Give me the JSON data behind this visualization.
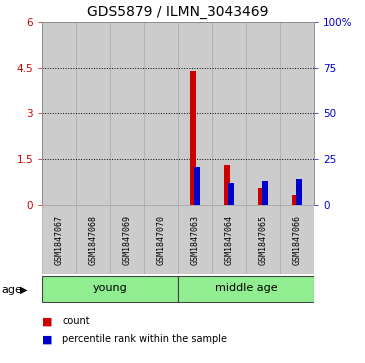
{
  "title": "GDS5879 / ILMN_3043469",
  "samples": [
    "GSM1847067",
    "GSM1847068",
    "GSM1847069",
    "GSM1847070",
    "GSM1847063",
    "GSM1847064",
    "GSM1847065",
    "GSM1847066"
  ],
  "count_values": [
    0.0,
    0.0,
    0.0,
    0.0,
    4.4,
    1.3,
    0.55,
    0.32
  ],
  "percentile_values": [
    0.0,
    0.0,
    0.0,
    0.0,
    21.0,
    12.0,
    13.0,
    14.0
  ],
  "groups": [
    {
      "label": "young",
      "start": 0,
      "end": 3,
      "color": "#90EE90"
    },
    {
      "label": "middle age",
      "start": 4,
      "end": 7,
      "color": "#90EE90"
    }
  ],
  "left_ylim": [
    0,
    6
  ],
  "left_yticks": [
    0,
    1.5,
    3.0,
    4.5,
    6.0
  ],
  "left_yticklabels": [
    "0",
    "1.5",
    "3",
    "4.5",
    "6"
  ],
  "right_ylim": [
    0,
    100
  ],
  "right_yticks": [
    0,
    25,
    50,
    75,
    100
  ],
  "right_yticklabels": [
    "0",
    "25",
    "50",
    "75",
    "100%"
  ],
  "bar_color_red": "#cc0000",
  "bar_color_blue": "#0000cc",
  "bar_bg_color": "#cccccc",
  "age_label": "age",
  "legend_count": "count",
  "legend_percentile": "percentile rank within the sample",
  "title_fontsize": 10,
  "tick_fontsize": 7.5,
  "label_fontsize": 8.5
}
